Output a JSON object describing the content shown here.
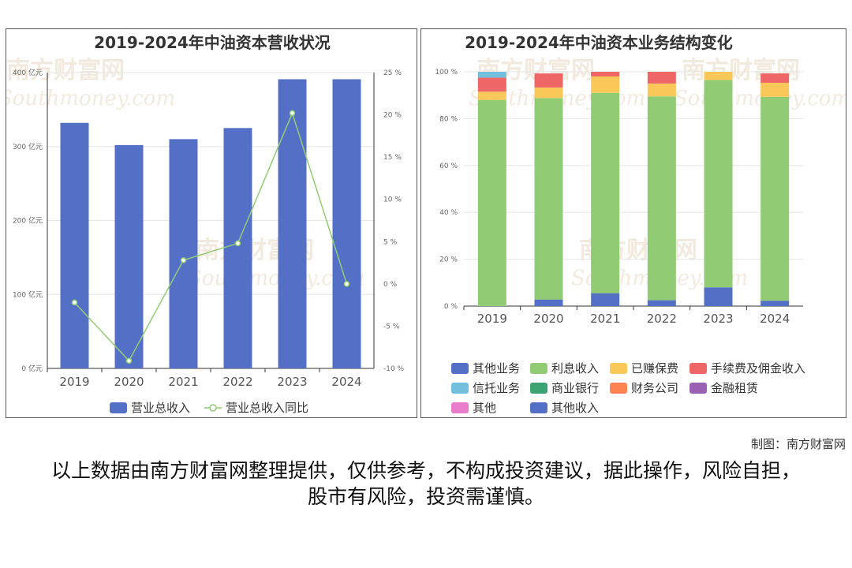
{
  "left_chart": {
    "title": "2019-2024年中油资本营收状况",
    "y_left_ticks": [
      "0 亿元",
      "100 亿元",
      "200 亿元",
      "300 亿元",
      "400 亿元"
    ],
    "y_right_ticks": [
      "-10 %",
      "-5 %",
      "0 %",
      "5 %",
      "10 %",
      "15 %",
      "20 %",
      "25 %"
    ],
    "legend": {
      "bar": "营业总收入",
      "line": "营业总收入同比"
    },
    "colors": {
      "bar": "#5470c6",
      "line": "#91cc75"
    }
  },
  "right_chart": {
    "title": "2019-2024年中油资本业务结构变化",
    "y_ticks": [
      "0 %",
      "20 %",
      "40 %",
      "60 %",
      "80 %",
      "100 %"
    ],
    "legend": [
      {
        "name": "其他业务",
        "color": "#5470c6"
      },
      {
        "name": "利息收入",
        "color": "#91cc75"
      },
      {
        "name": "已赚保费",
        "color": "#fac858"
      },
      {
        "name": "手续费及佣金收入",
        "color": "#ee6666"
      },
      {
        "name": "信托业务",
        "color": "#73c0de"
      },
      {
        "name": "商业银行",
        "color": "#3ba272"
      },
      {
        "name": "财务公司",
        "color": "#fc8452"
      },
      {
        "name": "金融租赁",
        "color": "#9a60b4"
      },
      {
        "name": "其他",
        "color": "#ea7ccc"
      },
      {
        "name": "其他收入",
        "color": "#5470c6"
      }
    ]
  },
  "watermark": {
    "cn": "南方财富网",
    "en": "Southmoney.com"
  },
  "credit": "制图：南方财富网",
  "disclaimer": "以上数据由南方财富网整理提供，仅供参考，不构成投资建议，据此操作，风险自担，股市有风险，投资需谨慎。",
  "chart_data": [
    {
      "type": "bar",
      "title": "2019-2024年中油资本营收状况",
      "categories": [
        "2019",
        "2020",
        "2021",
        "2022",
        "2023",
        "2024"
      ],
      "series": [
        {
          "name": "营业总收入",
          "type": "bar",
          "axis": "left",
          "unit": "亿元",
          "values": [
            332,
            302,
            310,
            325,
            391,
            391
          ]
        },
        {
          "name": "营业总收入同比",
          "type": "line",
          "axis": "right",
          "unit": "%",
          "values": [
            -2.2,
            -9.1,
            2.8,
            4.8,
            20.2,
            0.0
          ]
        }
      ],
      "ylim_left": [
        0,
        400
      ],
      "ylim_right": [
        -10,
        25
      ],
      "grid": true,
      "legend": "bottom"
    },
    {
      "type": "bar",
      "stacked": true,
      "title": "2019-2024年中油资本业务结构变化",
      "categories": [
        "2019",
        "2020",
        "2021",
        "2022",
        "2023",
        "2024"
      ],
      "unit": "%",
      "series": [
        {
          "name": "其他业务",
          "values": [
            0,
            2.8,
            5.5,
            2.5,
            8.0,
            2.3
          ]
        },
        {
          "name": "利息收入",
          "values": [
            88.0,
            86.0,
            85.5,
            87.0,
            88.5,
            87.0
          ]
        },
        {
          "name": "已赚保费",
          "values": [
            3.5,
            4.5,
            7.0,
            5.5,
            3.5,
            6.0
          ]
        },
        {
          "name": "手续费及佣金收入",
          "values": [
            6.0,
            6.0,
            2.0,
            5.0,
            0,
            4.0
          ]
        },
        {
          "name": "信托业务",
          "values": [
            2.5,
            0,
            0,
            0,
            0,
            0
          ]
        }
      ],
      "ylim": [
        0,
        100
      ],
      "grid": true,
      "legend": "bottom"
    }
  ]
}
